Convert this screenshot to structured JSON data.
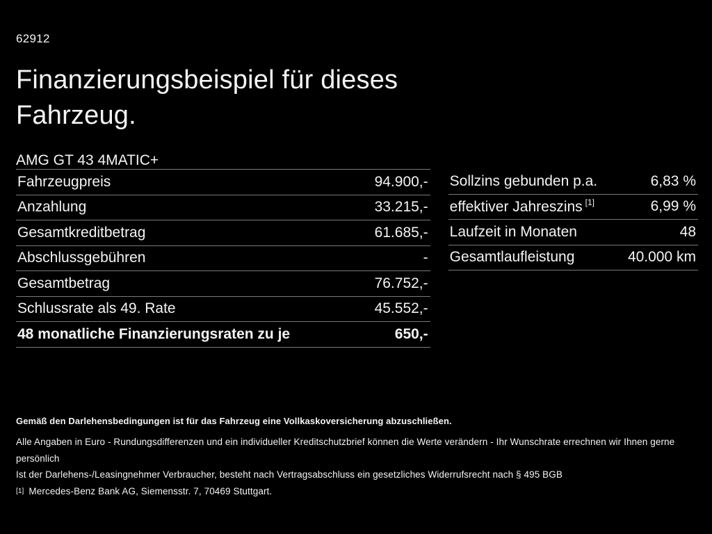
{
  "page": {
    "background": "#000000",
    "text_color": "#f4f4f4",
    "divider_color": "#7a7a7a"
  },
  "header": {
    "doc_number": "62912",
    "title": "Finanzierungsbeispiel für dieses Fahrzeug.",
    "vehicle_model": "AMG GT 43 4MATIC+"
  },
  "finance_table": {
    "rows": [
      {
        "label": "Fahrzeugpreis",
        "value": "94.900,-"
      },
      {
        "label": "Anzahlung",
        "value": "33.215,-"
      },
      {
        "label": "Gesamtkreditbetrag",
        "value": "61.685,-"
      },
      {
        "label": "Abschlussgebühren",
        "value": "-"
      },
      {
        "label": "Gesamtbetrag",
        "value": "76.752,-"
      },
      {
        "label": "Schlussrate als 49. Rate",
        "value": "45.552,-"
      },
      {
        "label": "48 monatliche Finanzierungsraten zu je",
        "value": "650,-"
      }
    ]
  },
  "conditions_table": {
    "rows": [
      {
        "label": "Sollzins gebunden p.a.",
        "sup": "",
        "value": "6,83 %"
      },
      {
        "label": "effektiver Jahreszins",
        "sup": "[1]",
        "value": "6,99 %"
      },
      {
        "label": "Laufzeit in Monaten",
        "sup": "",
        "value": "48"
      },
      {
        "label": "Gesamtlaufleistung",
        "sup": "",
        "value": "40.000 km"
      }
    ]
  },
  "footnotes": {
    "line1": "Gemäß den Darlehensbedingungen ist für das Fahrzeug eine Vollkaskoversicherung abzuschließen.",
    "line2": "Alle Angaben in Euro - Rundungsdifferenzen und ein individueller Kreditschutzbrief können die Werte verändern - Ihr Wunschrate errechnen wir Ihnen gerne persönlich",
    "line3": "Ist der Darlehens-/Leasingnehmer Verbraucher, besteht nach Vertragsabschluss ein gesetzliches Widerrufsrecht nach § 495 BGB",
    "line4_marker": "[1]",
    "line4": "Mercedes-Benz Bank AG, Siemensstr. 7, 70469 Stuttgart."
  }
}
